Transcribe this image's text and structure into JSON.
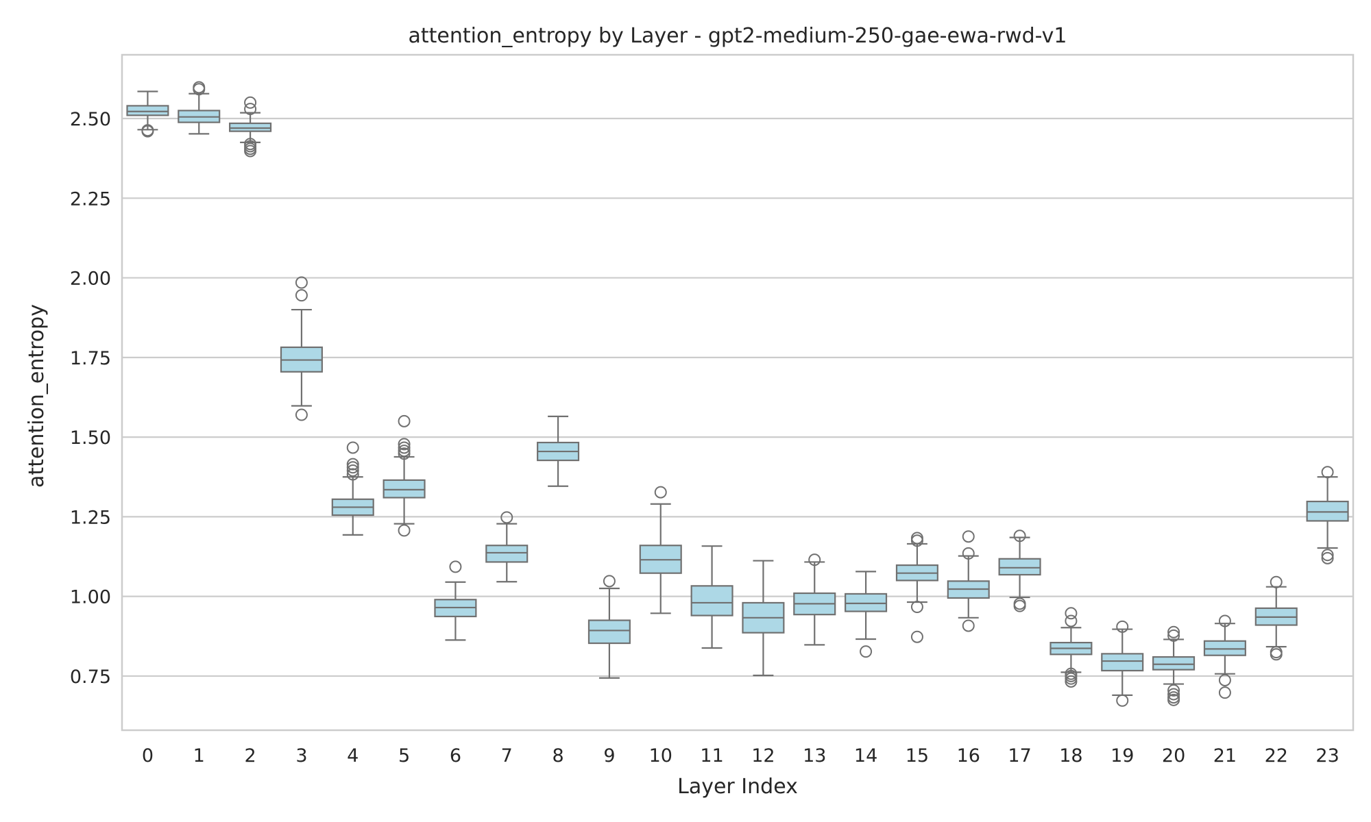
{
  "chart_data": {
    "type": "box",
    "title": "attention_entropy by Layer - gpt2-medium-250-gae-ewa-rwd-v1",
    "xlabel": "Layer Index",
    "ylabel": "attention_entropy",
    "ylim": [
      0.58,
      2.7
    ],
    "yticks": [
      0.75,
      1.0,
      1.25,
      1.5,
      1.75,
      2.0,
      2.25,
      2.5
    ],
    "grid": true,
    "categories": [
      "0",
      "1",
      "2",
      "3",
      "4",
      "5",
      "6",
      "7",
      "8",
      "9",
      "10",
      "11",
      "12",
      "13",
      "14",
      "15",
      "16",
      "17",
      "18",
      "19",
      "20",
      "21",
      "22",
      "23"
    ],
    "boxes": [
      {
        "q1": 2.51,
        "median": 2.522,
        "q3": 2.54,
        "whislo": 2.465,
        "whishi": 2.585,
        "fliers": [
          2.46,
          2.463
        ]
      },
      {
        "q1": 2.488,
        "median": 2.505,
        "q3": 2.525,
        "whislo": 2.452,
        "whishi": 2.578,
        "fliers": [
          2.592,
          2.598
        ]
      },
      {
        "q1": 2.46,
        "median": 2.47,
        "q3": 2.485,
        "whislo": 2.425,
        "whishi": 2.518,
        "fliers": [
          2.55,
          2.53,
          2.42,
          2.413,
          2.405,
          2.398
        ]
      },
      {
        "q1": 1.705,
        "median": 1.742,
        "q3": 1.782,
        "whislo": 1.598,
        "whishi": 1.9,
        "fliers": [
          1.985,
          1.945,
          1.57
        ]
      },
      {
        "q1": 1.255,
        "median": 1.28,
        "q3": 1.305,
        "whislo": 1.193,
        "whishi": 1.375,
        "fliers": [
          1.467,
          1.415,
          1.405,
          1.395,
          1.383
        ]
      },
      {
        "q1": 1.31,
        "median": 1.335,
        "q3": 1.365,
        "whislo": 1.228,
        "whishi": 1.438,
        "fliers": [
          1.55,
          1.478,
          1.467,
          1.457,
          1.448,
          1.207
        ]
      },
      {
        "q1": 0.937,
        "median": 0.965,
        "q3": 0.99,
        "whislo": 0.863,
        "whishi": 1.045,
        "fliers": [
          1.093
        ]
      },
      {
        "q1": 1.108,
        "median": 1.137,
        "q3": 1.16,
        "whislo": 1.046,
        "whishi": 1.228,
        "fliers": [
          1.248
        ]
      },
      {
        "q1": 1.427,
        "median": 1.455,
        "q3": 1.483,
        "whislo": 1.346,
        "whishi": 1.565,
        "fliers": []
      },
      {
        "q1": 0.853,
        "median": 0.893,
        "q3": 0.925,
        "whislo": 0.744,
        "whishi": 1.025,
        "fliers": [
          1.048
        ]
      },
      {
        "q1": 1.073,
        "median": 1.115,
        "q3": 1.16,
        "whislo": 0.947,
        "whishi": 1.29,
        "fliers": [
          1.327
        ]
      },
      {
        "q1": 0.94,
        "median": 0.98,
        "q3": 1.033,
        "whislo": 0.838,
        "whishi": 1.158,
        "fliers": []
      },
      {
        "q1": 0.886,
        "median": 0.933,
        "q3": 0.98,
        "whislo": 0.752,
        "whishi": 1.112,
        "fliers": []
      },
      {
        "q1": 0.943,
        "median": 0.977,
        "q3": 1.01,
        "whislo": 0.848,
        "whishi": 1.108,
        "fliers": [
          1.115
        ]
      },
      {
        "q1": 0.953,
        "median": 0.978,
        "q3": 1.008,
        "whislo": 0.866,
        "whishi": 1.078,
        "fliers": [
          0.827
        ]
      },
      {
        "q1": 1.05,
        "median": 1.073,
        "q3": 1.098,
        "whislo": 0.982,
        "whishi": 1.165,
        "fliers": [
          1.183,
          1.175,
          0.967,
          0.873
        ]
      },
      {
        "q1": 0.995,
        "median": 1.023,
        "q3": 1.048,
        "whislo": 0.933,
        "whishi": 1.127,
        "fliers": [
          1.188,
          1.135,
          0.908
        ]
      },
      {
        "q1": 1.068,
        "median": 1.09,
        "q3": 1.118,
        "whislo": 0.997,
        "whishi": 1.185,
        "fliers": [
          1.19,
          0.977,
          0.97
        ]
      },
      {
        "q1": 0.818,
        "median": 0.837,
        "q3": 0.855,
        "whislo": 0.762,
        "whishi": 0.902,
        "fliers": [
          0.947,
          0.923,
          0.757,
          0.75,
          0.742,
          0.733
        ]
      },
      {
        "q1": 0.767,
        "median": 0.797,
        "q3": 0.82,
        "whislo": 0.69,
        "whishi": 0.897,
        "fliers": [
          0.905,
          0.673
        ]
      },
      {
        "q1": 0.77,
        "median": 0.787,
        "q3": 0.81,
        "whislo": 0.725,
        "whishi": 0.865,
        "fliers": [
          0.888,
          0.877,
          0.705,
          0.693,
          0.683,
          0.675
        ]
      },
      {
        "q1": 0.815,
        "median": 0.835,
        "q3": 0.86,
        "whislo": 0.757,
        "whishi": 0.915,
        "fliers": [
          0.923,
          0.737,
          0.698
        ]
      },
      {
        "q1": 0.91,
        "median": 0.935,
        "q3": 0.963,
        "whislo": 0.842,
        "whishi": 1.03,
        "fliers": [
          1.045,
          0.825,
          0.818
        ]
      },
      {
        "q1": 1.237,
        "median": 1.265,
        "q3": 1.298,
        "whislo": 1.152,
        "whishi": 1.375,
        "fliers": [
          1.39,
          1.13,
          1.12
        ]
      }
    ],
    "colors": {
      "box_fill": "#add8e6",
      "line": "#707070",
      "grid": "#cccccc",
      "frame": "#cccccc"
    }
  }
}
